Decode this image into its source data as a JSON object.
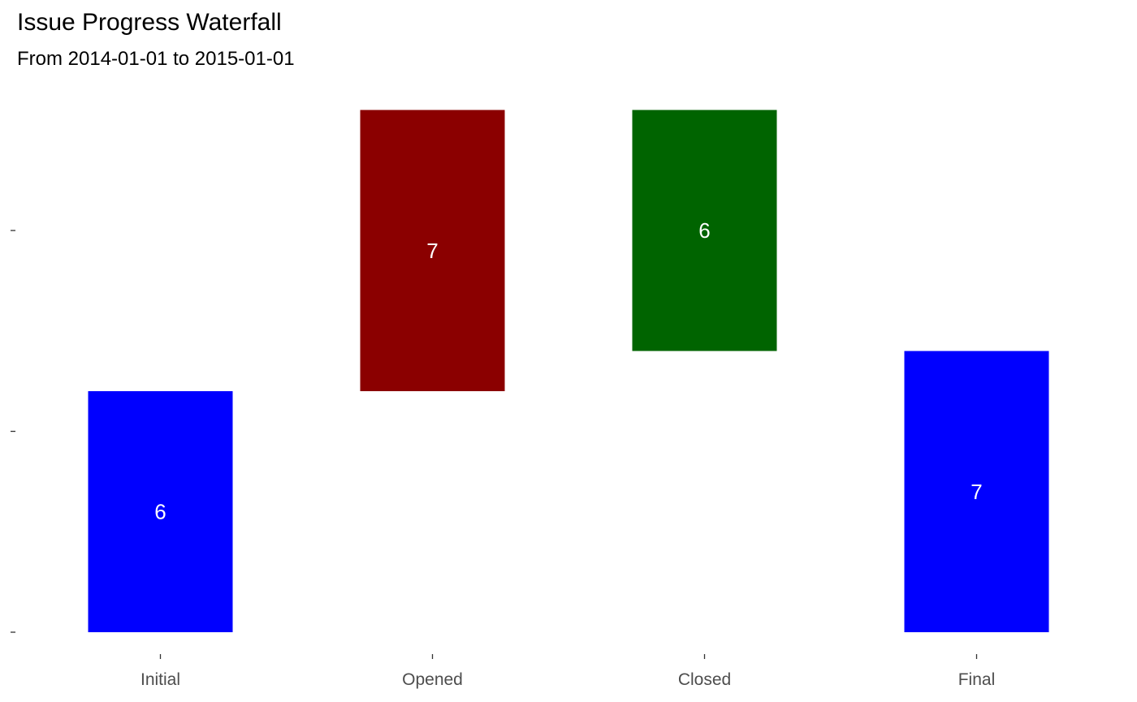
{
  "chart_data": {
    "type": "bar",
    "subtype": "waterfall",
    "title": "Issue Progress Waterfall",
    "subtitle": "From 2014-01-01 to 2015-01-01",
    "xlabel": "",
    "ylabel": "",
    "categories": [
      "Initial",
      "Opened",
      "Closed",
      "Final"
    ],
    "steps": [
      {
        "category": "Initial",
        "start": 0,
        "end": 6,
        "label": "6",
        "color": "#0000ff"
      },
      {
        "category": "Opened",
        "start": 6,
        "end": 13,
        "label": "7",
        "color": "#8b0000"
      },
      {
        "category": "Closed",
        "start": 13,
        "end": 7,
        "label": "6",
        "color": "#006400"
      },
      {
        "category": "Final",
        "start": 0,
        "end": 7,
        "label": "7",
        "color": "#0000ff"
      }
    ],
    "ylim": [
      0,
      13
    ],
    "yticks": [
      0,
      5,
      10
    ],
    "ytick_labels_visible": false,
    "grid": false,
    "legend": "none"
  }
}
